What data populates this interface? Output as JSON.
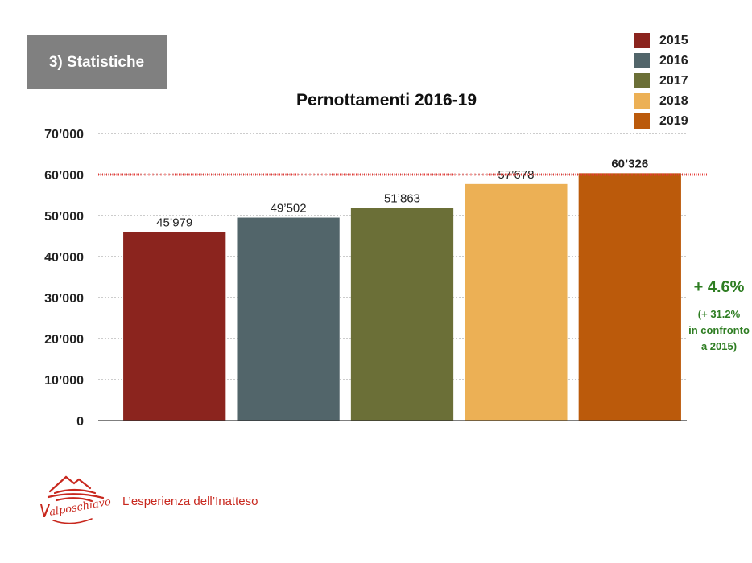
{
  "section_label": "3) Statistiche",
  "tagline": "L’esperienza dell’Inatteso",
  "logo_text": "Valposchiavo",
  "annotation": {
    "main": "+ 4.6%",
    "lines": [
      "(+ 31.2%",
      "in confronto",
      "a 2015)"
    ]
  },
  "colors": {
    "annotation": "#2e7d22",
    "reference_line": "#e53935",
    "brand": "#c8281e"
  },
  "chart_data": {
    "type": "bar",
    "title": "Pernottamenti 2016-19",
    "categories": [
      "2015",
      "2016",
      "2017",
      "2018",
      "2019"
    ],
    "values": [
      45979,
      49502,
      51863,
      57678,
      60326
    ],
    "value_labels": [
      "45’979",
      "49’502",
      "51’863",
      "57’678",
      "60’326"
    ],
    "colors": [
      "#8b241e",
      "#52656a",
      "#6b6f37",
      "#ecb055",
      "#bb5a0b"
    ],
    "ylim": [
      0,
      70000
    ],
    "yticks": [
      0,
      10000,
      20000,
      30000,
      40000,
      50000,
      60000,
      70000
    ],
    "ytick_labels": [
      "0",
      "10’000",
      "20’000",
      "30’000",
      "40’000",
      "50’000",
      "60’000",
      "70’000"
    ],
    "reference_line": 60000,
    "legend": [
      "2015",
      "2016",
      "2017",
      "2018",
      "2019"
    ],
    "legend_position": "top-right",
    "grid": true,
    "xlabel": "",
    "ylabel": ""
  }
}
